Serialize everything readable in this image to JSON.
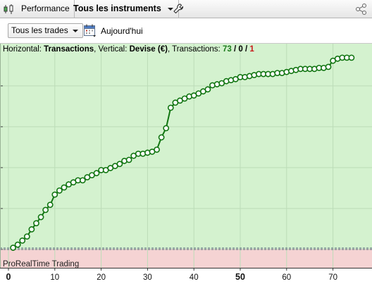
{
  "tabbar": {
    "performance_label": "Performance",
    "instruments_label": "Tous les instruments",
    "icons": [
      "chart-candles-icon",
      "wrench-icon",
      "share-icon"
    ]
  },
  "toolbar": {
    "trades_select_value": "Tous les trades",
    "today_label": "Aujourd'hui",
    "icons": [
      "calendar-icon"
    ]
  },
  "info": {
    "horizontal_label": "Horizontal: ",
    "horizontal_value": "Transactions",
    "vertical_label": ", Vertical: ",
    "vertical_value": "Devise (€)",
    "transactions_label": ", Transactions: ",
    "tx_total": "73",
    "sep1": " / ",
    "tx_neutral": "0",
    "sep2": " / ",
    "tx_losing": "1"
  },
  "brand_label": "ProRealTime Trading",
  "colors": {
    "profit_area": "#d4f2cf",
    "loss_area": "#f5d3d3",
    "line": "#117511",
    "grid": "#bcdcb8"
  },
  "chart_data": {
    "type": "line",
    "x_ticks": [
      {
        "value": 0,
        "label": "0",
        "bold": true
      },
      {
        "value": 10,
        "label": "10",
        "bold": false
      },
      {
        "value": 20,
        "label": "20",
        "bold": false
      },
      {
        "value": 30,
        "label": "30",
        "bold": false
      },
      {
        "value": 40,
        "label": "40",
        "bold": false
      },
      {
        "value": 50,
        "label": "50",
        "bold": true
      },
      {
        "value": 60,
        "label": "60",
        "bold": false
      },
      {
        "value": 70,
        "label": "70",
        "bold": false
      }
    ],
    "xlim": [
      0,
      76
    ],
    "ylim": [
      -8,
      91
    ],
    "baseline": 0,
    "grid": true,
    "values": [
      0.5,
      2,
      4,
      6,
      9.5,
      12.5,
      15.5,
      19,
      21.5,
      26.5,
      28.5,
      30,
      31.5,
      32.5,
      33.5,
      33.5,
      35,
      36,
      37,
      38.5,
      38.5,
      39.5,
      40.5,
      41.5,
      43,
      43.5,
      45.5,
      46.5,
      46.5,
      47,
      47.5,
      48.5,
      54.5,
      59,
      69,
      71.5,
      72.5,
      73.5,
      74.5,
      75,
      76,
      77,
      78,
      80,
      80.5,
      81,
      82,
      82.5,
      83,
      84,
      84,
      84.5,
      85,
      85.5,
      85.5,
      85.5,
      85.5,
      86,
      86,
      86.5,
      87,
      87.5,
      88,
      88,
      88,
      88,
      88.5,
      88.5,
      89,
      92,
      93,
      93.5,
      93.5,
      93.5
    ]
  }
}
